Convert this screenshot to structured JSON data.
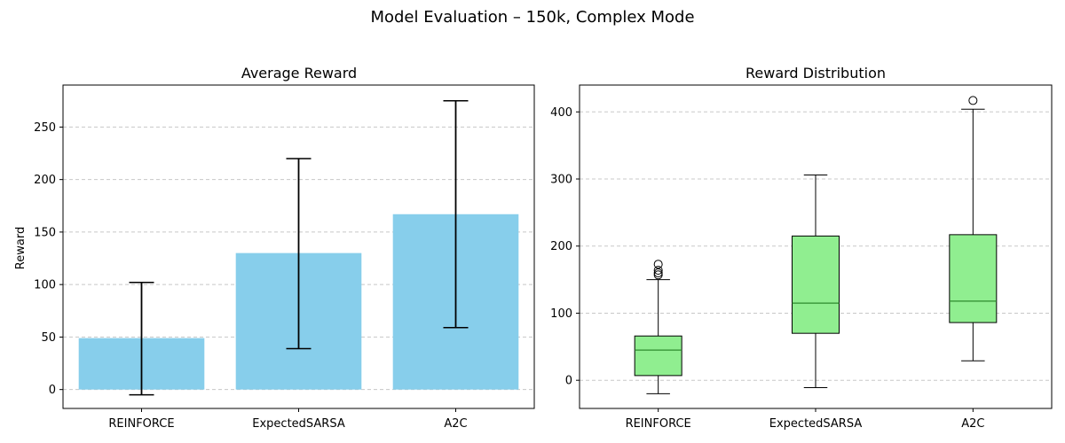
{
  "suptitle": "Model Evaluation – 150k, Complex Mode",
  "colors": {
    "bar": "#87ceeb",
    "box": "#90ee90",
    "median": "#2e8b2e",
    "grid": "#c8c8c8",
    "errorbar": "#000000"
  },
  "chart_data": [
    {
      "type": "bar",
      "title": "Average Reward",
      "xlabel": "",
      "ylabel": "Reward",
      "categories": [
        "REINFORCE",
        "ExpectedSARSA",
        "A2C"
      ],
      "values": [
        49,
        130,
        167
      ],
      "error_low": [
        -5,
        39,
        59
      ],
      "error_high": [
        102,
        220,
        275
      ],
      "ylim": [
        -18,
        290
      ],
      "yticks": [
        0,
        50,
        100,
        150,
        200,
        250
      ],
      "grid": "y-dashed"
    },
    {
      "type": "box",
      "title": "Reward Distribution",
      "xlabel": "",
      "ylabel": "",
      "categories": [
        "REINFORCE",
        "ExpectedSARSA",
        "A2C"
      ],
      "boxes": [
        {
          "whisker_low": -20,
          "q1": 7,
          "median": 45,
          "q3": 66,
          "whisker_high": 150,
          "outliers": [
            157,
            160,
            164,
            173
          ]
        },
        {
          "whisker_low": -11,
          "q1": 70,
          "median": 115,
          "q3": 215,
          "whisker_high": 306,
          "outliers": []
        },
        {
          "whisker_low": 29,
          "q1": 86,
          "median": 118,
          "q3": 217,
          "whisker_high": 404,
          "outliers": [
            417
          ]
        }
      ],
      "ylim": [
        -42,
        440
      ],
      "yticks": [
        0,
        100,
        200,
        300,
        400
      ],
      "grid": "y-dashed"
    }
  ]
}
